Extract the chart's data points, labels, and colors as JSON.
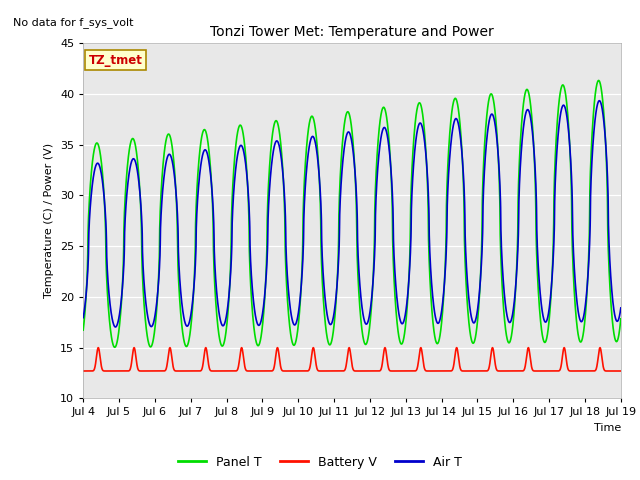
{
  "title": "Tonzi Tower Met: Temperature and Power",
  "no_data_text": "No data for f_sys_volt",
  "annotation_text": "TZ_tmet",
  "ylabel": "Temperature (C) / Power (V)",
  "xlabel": "Time",
  "ylim": [
    10,
    45
  ],
  "bg_color": "#d8d8d8",
  "plot_bg": "#e8e8e8",
  "panel_color": "#00dd00",
  "battery_color": "#ff1100",
  "air_color": "#0000cc",
  "legend_labels": [
    "Panel T",
    "Battery V",
    "Air T"
  ],
  "xtick_labels": [
    "Jul 4",
    "Jul 5",
    "Jul 6",
    "Jul 7",
    "Jul 8",
    "Jul 9",
    "Jul 10",
    "Jul 11",
    "Jul 12",
    "Jul 13",
    "Jul 14",
    "Jul 15",
    "Jul 16",
    "Jul 17",
    "Jul 18",
    "Jul 19"
  ],
  "xtick_positions": [
    4,
    5,
    6,
    7,
    8,
    9,
    10,
    11,
    12,
    13,
    14,
    15,
    16,
    17,
    18,
    19
  ]
}
